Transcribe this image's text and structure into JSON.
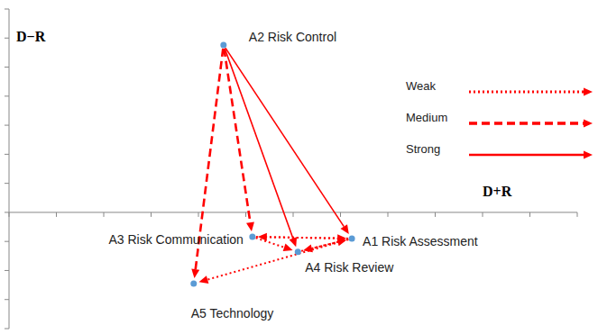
{
  "chart_data": {
    "type": "scatter",
    "xlabel": "D+R",
    "ylabel": "D−R",
    "xlim": [
      0,
      12
    ],
    "xticks": [
      0,
      1,
      2,
      3,
      4,
      5,
      6,
      7,
      8,
      9,
      10,
      11,
      12
    ],
    "ylim": [
      -4,
      7
    ],
    "yticks": [
      -4,
      -3,
      -2,
      -1,
      0,
      1,
      2,
      3,
      4,
      5,
      6,
      7
    ],
    "tick_labels": false,
    "grid": false,
    "legend": "upper right",
    "color": "#5b9bd5",
    "points": [
      {
        "label": "A1 Risk Assessment",
        "x": 7.24,
        "y": -0.9
      },
      {
        "label": "A2 Risk Control",
        "x": 4.53,
        "y": 5.76
      },
      {
        "label": "A3 Risk Communication",
        "x": 5.14,
        "y": -0.84
      },
      {
        "label": "A4 Risk Review",
        "x": 6.1,
        "y": -1.36
      },
      {
        "label": "A5 Technology",
        "x": 3.9,
        "y": -2.45
      }
    ],
    "strengths": [
      {
        "name": "Weak",
        "line_style": "dotted",
        "color": "#ff0000"
      },
      {
        "name": "Medium",
        "line_style": "dashed",
        "color": "#ff0000"
      },
      {
        "name": "Strong",
        "line_style": "solid",
        "color": "#ff0000"
      }
    ],
    "relations": [
      {
        "from": "A2 Risk Control",
        "to": "A5 Technology",
        "strength": "Medium"
      },
      {
        "from": "A2 Risk Control",
        "to": "A3 Risk Communication",
        "strength": "Medium"
      },
      {
        "from": "A2 Risk Control",
        "to": "A4 Risk Review",
        "strength": "Strong"
      },
      {
        "from": "A2 Risk Control",
        "to": "A1 Risk Assessment",
        "strength": "Strong"
      },
      {
        "from": "A3 Risk Communication",
        "to": "A1 Risk Assessment",
        "strength": "Weak"
      },
      {
        "from": "A1 Risk Assessment",
        "to": "A3 Risk Communication",
        "strength": "Weak"
      },
      {
        "from": "A3 Risk Communication",
        "to": "A4 Risk Review",
        "strength": "Weak"
      },
      {
        "from": "A4 Risk Review",
        "to": "A1 Risk Assessment",
        "strength": "Weak"
      },
      {
        "from": "A1 Risk Assessment",
        "to": "A4 Risk Review",
        "strength": "Weak"
      },
      {
        "from": "A1 Risk Assessment",
        "to": "A5 Technology",
        "strength": "Weak"
      }
    ]
  }
}
